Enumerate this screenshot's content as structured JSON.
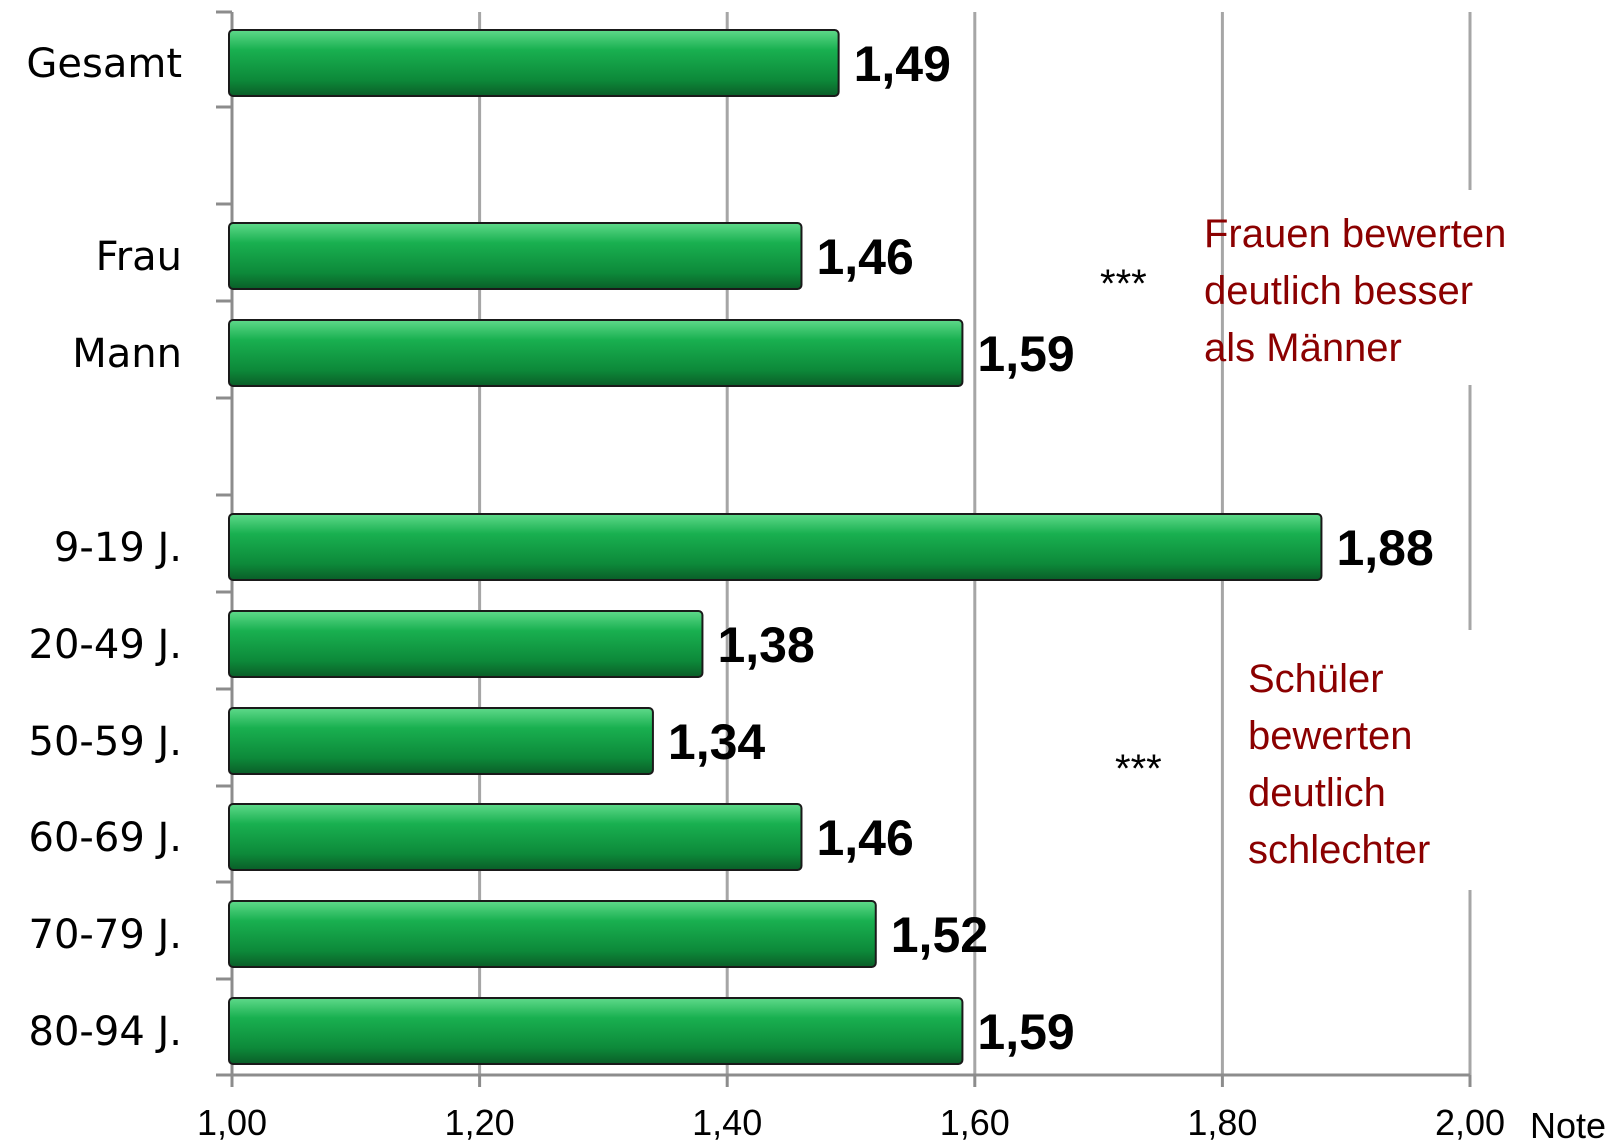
{
  "chart_data": {
    "type": "bar",
    "orientation": "horizontal",
    "categories": [
      "Gesamt",
      "Frau",
      "Mann",
      "9-19 J.",
      "20-49 J.",
      "50-59 J.",
      "60-69 J.",
      "70-79 J.",
      "80-94 J."
    ],
    "values": [
      1.49,
      1.46,
      1.59,
      1.88,
      1.38,
      1.34,
      1.46,
      1.52,
      1.59
    ],
    "value_labels": [
      "1,49",
      "1,46",
      "1,59",
      "1,88",
      "1,38",
      "1,34",
      "1,46",
      "1,52",
      "1,59"
    ],
    "xlim": [
      1.0,
      2.0
    ],
    "x_ticks": [
      "1,00",
      "1,20",
      "1,40",
      "1,60",
      "1,80",
      "2,00"
    ],
    "x_unit": "Note",
    "grid": true,
    "bar_color": "#1aa84f",
    "annotations": [
      {
        "stars": "***",
        "lines": [
          "Frauen bewerten",
          "deutlich besser",
          "als Männer"
        ],
        "color": "#8b0000"
      },
      {
        "stars": "***",
        "lines": [
          "Schüler",
          "bewerten",
          "deutlich",
          "schlechter"
        ],
        "color": "#8b0000"
      }
    ]
  }
}
